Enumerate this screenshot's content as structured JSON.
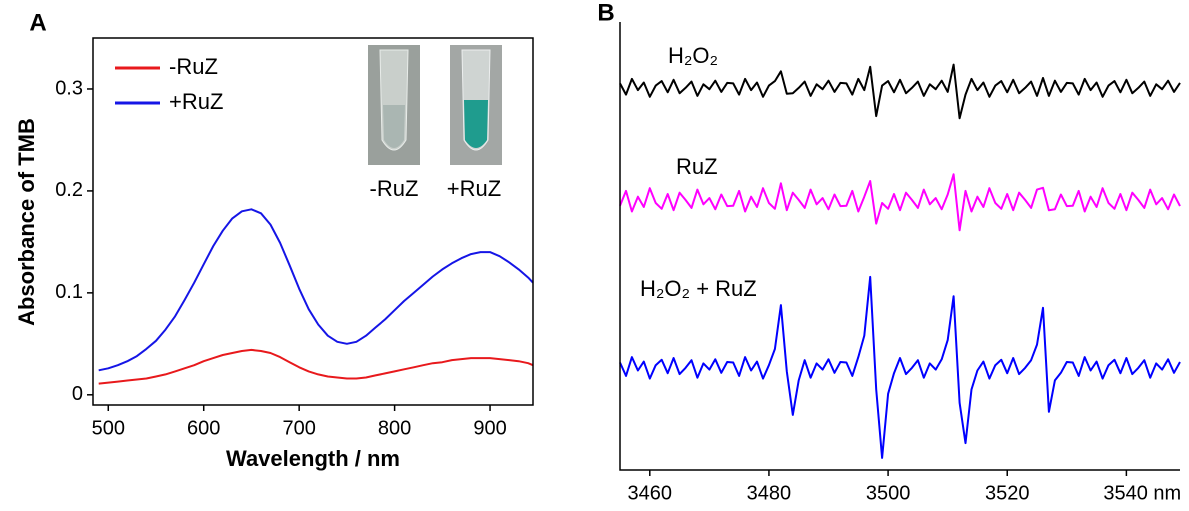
{
  "chart_data": [
    {
      "type": "line",
      "panel_label": "A",
      "xlabel": "Wavelength / nm",
      "ylabel": "Absorbance of TMB",
      "xlim": [
        484,
        945
      ],
      "ylim": [
        -0.01,
        0.35
      ],
      "xticks": [
        500,
        600,
        700,
        800,
        900
      ],
      "yticks": [
        0,
        0.1,
        0.2,
        0.3
      ],
      "inset_labels": [
        "-RuZ",
        "+RuZ"
      ],
      "x": [
        490,
        500,
        510,
        520,
        530,
        540,
        550,
        560,
        570,
        580,
        590,
        600,
        610,
        620,
        630,
        640,
        650,
        660,
        670,
        680,
        690,
        700,
        710,
        720,
        730,
        740,
        750,
        760,
        770,
        780,
        790,
        800,
        810,
        820,
        830,
        840,
        850,
        860,
        870,
        880,
        890,
        900,
        910,
        920,
        930,
        940,
        945
      ],
      "series": [
        {
          "name": "-RuZ",
          "color": "#e8191c",
          "values": [
            0.011,
            0.012,
            0.013,
            0.014,
            0.015,
            0.016,
            0.018,
            0.02,
            0.023,
            0.026,
            0.029,
            0.033,
            0.036,
            0.039,
            0.041,
            0.043,
            0.044,
            0.043,
            0.041,
            0.037,
            0.032,
            0.027,
            0.023,
            0.02,
            0.018,
            0.017,
            0.016,
            0.016,
            0.017,
            0.019,
            0.021,
            0.023,
            0.025,
            0.027,
            0.029,
            0.031,
            0.032,
            0.034,
            0.035,
            0.036,
            0.036,
            0.036,
            0.035,
            0.034,
            0.033,
            0.031,
            0.029
          ]
        },
        {
          "name": "+RuZ",
          "color": "#1515e6",
          "values": [
            0.024,
            0.026,
            0.029,
            0.033,
            0.038,
            0.045,
            0.053,
            0.064,
            0.077,
            0.093,
            0.11,
            0.128,
            0.146,
            0.161,
            0.173,
            0.18,
            0.182,
            0.178,
            0.167,
            0.149,
            0.127,
            0.104,
            0.084,
            0.069,
            0.058,
            0.052,
            0.05,
            0.052,
            0.058,
            0.066,
            0.074,
            0.083,
            0.092,
            0.1,
            0.108,
            0.116,
            0.123,
            0.129,
            0.134,
            0.138,
            0.14,
            0.14,
            0.136,
            0.13,
            0.123,
            0.115,
            0.11
          ]
        }
      ]
    },
    {
      "type": "line",
      "panel_label": "B",
      "xlim": [
        3455,
        3549
      ],
      "ylim": [
        0,
        10
      ],
      "xticks": [
        3460,
        3480,
        3500,
        3520,
        {
          "value": 3540,
          "label": "3540 nm"
        }
      ],
      "x": [
        3455,
        3456,
        3457,
        3458,
        3459,
        3460,
        3461,
        3462,
        3463,
        3464,
        3465,
        3466,
        3467,
        3468,
        3469,
        3470,
        3471,
        3472,
        3473,
        3474,
        3475,
        3476,
        3477,
        3478,
        3479,
        3480,
        3481,
        3482,
        3483,
        3484,
        3485,
        3486,
        3487,
        3488,
        3489,
        3490,
        3491,
        3492,
        3493,
        3494,
        3495,
        3496,
        3497,
        3498,
        3499,
        3500,
        3501,
        3502,
        3503,
        3504,
        3505,
        3506,
        3507,
        3508,
        3509,
        3510,
        3511,
        3512,
        3513,
        3514,
        3515,
        3516,
        3517,
        3518,
        3519,
        3520,
        3521,
        3522,
        3523,
        3524,
        3525,
        3526,
        3527,
        3528,
        3529,
        3530,
        3531,
        3532,
        3533,
        3534,
        3535,
        3536,
        3537,
        3538,
        3539,
        3540,
        3541,
        3542,
        3543,
        3544,
        3545,
        3546,
        3547,
        3548,
        3549
      ],
      "series": [
        {
          "name": "H₂O₂",
          "color": "#000000",
          "values": [
            8.63,
            8.38,
            8.73,
            8.48,
            8.65,
            8.33,
            8.58,
            8.68,
            8.43,
            8.71,
            8.41,
            8.53,
            8.67,
            8.35,
            8.61,
            8.5,
            8.69,
            8.44,
            8.64,
            8.63,
            8.38,
            8.73,
            8.48,
            8.65,
            8.33,
            8.58,
            8.68,
            8.9,
            8.4,
            8.41,
            8.53,
            8.67,
            8.35,
            8.61,
            8.5,
            8.69,
            8.44,
            8.64,
            8.63,
            8.38,
            8.73,
            8.48,
            9.0,
            7.9,
            8.58,
            8.68,
            8.43,
            8.71,
            8.41,
            8.53,
            8.67,
            8.35,
            8.61,
            8.5,
            8.69,
            8.44,
            9.05,
            7.85,
            8.38,
            8.73,
            8.48,
            8.65,
            8.33,
            8.58,
            8.68,
            8.43,
            8.71,
            8.41,
            8.53,
            8.67,
            8.35,
            8.75,
            8.35,
            8.69,
            8.44,
            8.64,
            8.63,
            8.38,
            8.73,
            8.48,
            8.65,
            8.33,
            8.58,
            8.68,
            8.43,
            8.71,
            8.41,
            8.53,
            8.67,
            8.35,
            8.61,
            8.5,
            8.69,
            8.44,
            8.64
          ]
        },
        {
          "name": "RuZ",
          "color": "#ff00ff",
          "values": [
            5.9,
            6.23,
            5.77,
            6.1,
            5.87,
            6.29,
            5.96,
            5.83,
            6.16,
            5.8,
            6.19,
            6.03,
            5.85,
            6.26,
            5.93,
            6.07,
            5.82,
            6.15,
            5.89,
            5.9,
            6.23,
            5.77,
            6.1,
            5.87,
            6.29,
            5.96,
            5.83,
            6.4,
            5.8,
            6.19,
            6.03,
            5.85,
            6.26,
            5.93,
            6.07,
            5.82,
            6.15,
            5.89,
            5.9,
            6.23,
            5.77,
            6.1,
            6.45,
            5.5,
            5.96,
            5.83,
            6.16,
            5.8,
            6.19,
            6.03,
            5.85,
            6.26,
            5.93,
            6.07,
            5.82,
            6.15,
            6.6,
            5.35,
            6.23,
            5.77,
            6.1,
            5.87,
            6.29,
            5.96,
            5.83,
            6.16,
            5.8,
            6.19,
            6.03,
            5.85,
            6.26,
            6.3,
            5.8,
            5.82,
            6.15,
            5.89,
            5.9,
            6.23,
            5.77,
            6.1,
            5.87,
            6.29,
            5.96,
            5.83,
            6.16,
            5.8,
            6.19,
            6.03,
            5.85,
            6.26,
            5.93,
            6.07,
            5.82,
            6.15,
            5.89
          ]
        },
        {
          "name": "H₂O₂ + RuZ",
          "color": "#0000ff",
          "values": [
            2.4,
            2.1,
            2.52,
            2.22,
            2.42,
            2.04,
            2.34,
            2.46,
            2.16,
            2.5,
            2.14,
            2.28,
            2.45,
            2.06,
            2.38,
            2.24,
            2.47,
            2.17,
            2.41,
            2.4,
            2.1,
            2.52,
            2.22,
            2.42,
            2.04,
            2.34,
            2.7,
            3.68,
            2.2,
            1.23,
            2.0,
            2.45,
            2.06,
            2.38,
            2.24,
            2.47,
            2.17,
            2.41,
            2.4,
            2.1,
            2.52,
            3.0,
            4.31,
            1.8,
            0.27,
            1.7,
            2.16,
            2.5,
            2.14,
            2.28,
            2.45,
            2.06,
            2.38,
            2.24,
            2.47,
            2.9,
            3.88,
            1.5,
            0.6,
            1.8,
            2.22,
            2.42,
            2.04,
            2.34,
            2.46,
            2.16,
            2.5,
            2.14,
            2.28,
            2.45,
            2.8,
            3.62,
            1.3,
            2.0,
            2.17,
            2.41,
            2.4,
            2.1,
            2.52,
            2.22,
            2.42,
            2.04,
            2.34,
            2.46,
            2.16,
            2.5,
            2.14,
            2.28,
            2.45,
            2.06,
            2.38,
            2.24,
            2.47,
            2.17,
            2.41
          ]
        }
      ]
    }
  ]
}
